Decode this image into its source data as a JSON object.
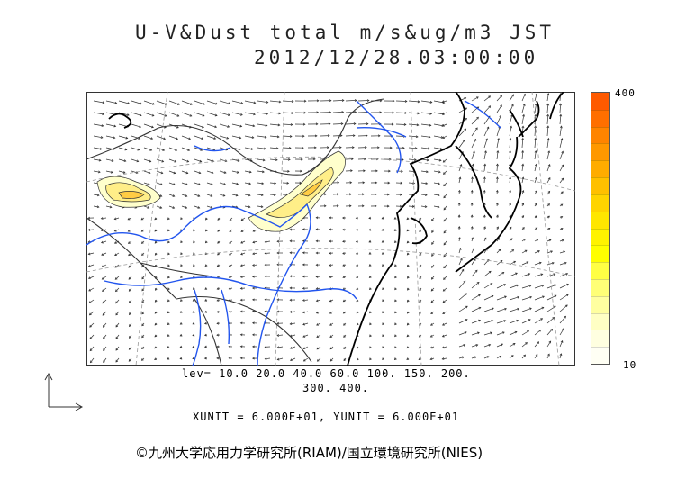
{
  "title": {
    "line1": "U-V&Dust total m/s&ug/m3 JST",
    "line2": "2012/12/28.03:00:00"
  },
  "colorbar": {
    "max_label": "400",
    "min_label": "10",
    "colors": [
      "#ff5a00",
      "#ff6f00",
      "#ff8400",
      "#ff9800",
      "#ffac00",
      "#ffc000",
      "#ffd400",
      "#ffe600",
      "#fff300",
      "#ffff00",
      "#ffff44",
      "#ffff77",
      "#ffffa0",
      "#ffffc4",
      "#ffffe0",
      "#fffff4"
    ]
  },
  "legend": {
    "lev_line1": "lev= 10.0 20.0 40.0 60.0 100. 150. 200.",
    "lev_line2": "300. 400.",
    "unit_line": "XUNIT = 6.000E+01, YUNIT = 6.000E+01"
  },
  "credit": "©九州大学応用力学研究所(RIAM)/国立環境研究所(NIES)",
  "map_colors": {
    "coast": "#000000",
    "river": "#2255ee",
    "border": "#333333",
    "grid": "#999999",
    "arrow": "#333333",
    "dust_light": "#ffffcc",
    "dust_mid": "#ffee88",
    "dust_high": "#ffcc44"
  },
  "icons": {
    "axes": "xy-axes-arrows-icon"
  }
}
